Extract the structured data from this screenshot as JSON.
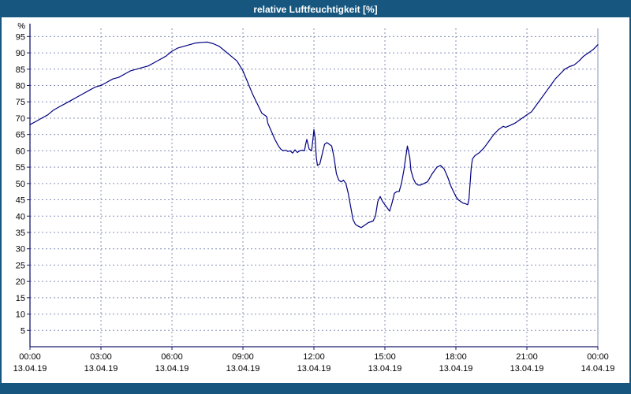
{
  "title_bar": {
    "title": "relative Luftfeuchtigkeit [%]"
  },
  "colors": {
    "titlebar_bg": "#16567f",
    "titlebar_fg": "#ffffff",
    "line": "#000080",
    "axis": "#1a1a6e",
    "grid": "#8890b8",
    "tick_text": "#000000",
    "plot_bg": "#ffffff"
  },
  "chart_data": {
    "type": "line",
    "title": "relative Luftfeuchtigkeit [%]",
    "xlabel": "",
    "ylabel": "%",
    "ylim": [
      0,
      97.5
    ],
    "yticks": [
      5,
      10,
      15,
      20,
      25,
      30,
      35,
      40,
      45,
      50,
      55,
      60,
      65,
      70,
      75,
      80,
      85,
      90,
      95
    ],
    "xlim_hours": [
      0,
      24
    ],
    "grid": true,
    "legend_position": "none",
    "xticks": [
      {
        "hour": 0,
        "time": "00:00",
        "date": "13.04.19"
      },
      {
        "hour": 3,
        "time": "03:00",
        "date": "13.04.19"
      },
      {
        "hour": 6,
        "time": "06:00",
        "date": "13.04.19"
      },
      {
        "hour": 9,
        "time": "09:00",
        "date": "13.04.19"
      },
      {
        "hour": 12,
        "time": "12:00",
        "date": "13.04.19"
      },
      {
        "hour": 15,
        "time": "15:00",
        "date": "13.04.19"
      },
      {
        "hour": 18,
        "time": "18:00",
        "date": "13.04.19"
      },
      {
        "hour": 21,
        "time": "21:00",
        "date": "13.04.19"
      },
      {
        "hour": 24,
        "time": "00:00",
        "date": "14.04.19"
      }
    ],
    "series": [
      {
        "name": "relative Luftfeuchtigkeit [%]",
        "points": [
          [
            0,
            68
          ],
          [
            0.25,
            69
          ],
          [
            0.5,
            70
          ],
          [
            0.75,
            71
          ],
          [
            1,
            72.5
          ],
          [
            1.25,
            73.5
          ],
          [
            1.5,
            74.5
          ],
          [
            1.75,
            75.5
          ],
          [
            2,
            76.5
          ],
          [
            2.25,
            77.5
          ],
          [
            2.5,
            78.5
          ],
          [
            2.75,
            79.5
          ],
          [
            3,
            80
          ],
          [
            3.25,
            81
          ],
          [
            3.5,
            82
          ],
          [
            3.75,
            82.5
          ],
          [
            4,
            83.5
          ],
          [
            4.25,
            84.5
          ],
          [
            4.5,
            85
          ],
          [
            4.75,
            85.5
          ],
          [
            5,
            86
          ],
          [
            5.25,
            87
          ],
          [
            5.5,
            88
          ],
          [
            5.75,
            89
          ],
          [
            6,
            90.5
          ],
          [
            6.25,
            91.5
          ],
          [
            6.5,
            92
          ],
          [
            6.75,
            92.5
          ],
          [
            7,
            93
          ],
          [
            7.25,
            93.2
          ],
          [
            7.5,
            93.3
          ],
          [
            7.75,
            92.8
          ],
          [
            8,
            92
          ],
          [
            8.25,
            90.5
          ],
          [
            8.5,
            89
          ],
          [
            8.75,
            87.5
          ],
          [
            9,
            84.5
          ],
          [
            9.2,
            81
          ],
          [
            9.4,
            77.5
          ],
          [
            9.6,
            74.5
          ],
          [
            9.7,
            73
          ],
          [
            9.8,
            71.5
          ],
          [
            9.9,
            71
          ],
          [
            10,
            70.5
          ],
          [
            10.05,
            68.5
          ],
          [
            10.2,
            66
          ],
          [
            10.35,
            63.5
          ],
          [
            10.5,
            61.5
          ],
          [
            10.6,
            60.5
          ],
          [
            10.7,
            60
          ],
          [
            10.8,
            60.2
          ],
          [
            10.9,
            59.8
          ],
          [
            11,
            60
          ],
          [
            11.1,
            59.3
          ],
          [
            11.2,
            60.3
          ],
          [
            11.3,
            59.5
          ],
          [
            11.4,
            60
          ],
          [
            11.5,
            60.2
          ],
          [
            11.6,
            60
          ],
          [
            11.65,
            62
          ],
          [
            11.7,
            63.5
          ],
          [
            11.75,
            62
          ],
          [
            11.8,
            60.5
          ],
          [
            11.9,
            60
          ],
          [
            11.95,
            63
          ],
          [
            12,
            66.5
          ],
          [
            12.05,
            64
          ],
          [
            12.1,
            58
          ],
          [
            12.15,
            55.5
          ],
          [
            12.25,
            56
          ],
          [
            12.35,
            59
          ],
          [
            12.45,
            62
          ],
          [
            12.55,
            62.5
          ],
          [
            12.65,
            62
          ],
          [
            12.75,
            61.5
          ],
          [
            12.85,
            58
          ],
          [
            12.95,
            53
          ],
          [
            13.05,
            51
          ],
          [
            13.15,
            50.5
          ],
          [
            13.25,
            51
          ],
          [
            13.35,
            50
          ],
          [
            13.45,
            47
          ],
          [
            13.55,
            43
          ],
          [
            13.65,
            39
          ],
          [
            13.75,
            37.5
          ],
          [
            13.85,
            37
          ],
          [
            14,
            36.5
          ],
          [
            14.1,
            37
          ],
          [
            14.3,
            38
          ],
          [
            14.5,
            38.5
          ],
          [
            14.6,
            40
          ],
          [
            14.7,
            44.5
          ],
          [
            14.8,
            46
          ],
          [
            14.9,
            44.5
          ],
          [
            15,
            43.5
          ],
          [
            15.1,
            42.5
          ],
          [
            15.2,
            41.5
          ],
          [
            15.3,
            44
          ],
          [
            15.4,
            47
          ],
          [
            15.5,
            47.5
          ],
          [
            15.6,
            47.5
          ],
          [
            15.7,
            50
          ],
          [
            15.8,
            54
          ],
          [
            15.9,
            59
          ],
          [
            15.95,
            61.5
          ],
          [
            16.05,
            58
          ],
          [
            16.1,
            54
          ],
          [
            16.2,
            51.5
          ],
          [
            16.3,
            50
          ],
          [
            16.4,
            49.5
          ],
          [
            16.5,
            49.5
          ],
          [
            16.6,
            49.8
          ],
          [
            16.8,
            50.5
          ],
          [
            17,
            53
          ],
          [
            17.2,
            55
          ],
          [
            17.35,
            55.5
          ],
          [
            17.5,
            54.5
          ],
          [
            17.65,
            52
          ],
          [
            17.8,
            49
          ],
          [
            17.9,
            47.5
          ],
          [
            18,
            46
          ],
          [
            18.1,
            45
          ],
          [
            18.2,
            44.5
          ],
          [
            18.3,
            44
          ],
          [
            18.4,
            43.8
          ],
          [
            18.5,
            43.5
          ],
          [
            18.55,
            45
          ],
          [
            18.6,
            50
          ],
          [
            18.65,
            55
          ],
          [
            18.7,
            57.5
          ],
          [
            18.8,
            58.5
          ],
          [
            19,
            59.5
          ],
          [
            19.2,
            61
          ],
          [
            19.4,
            63
          ],
          [
            19.6,
            65
          ],
          [
            19.8,
            66.5
          ],
          [
            20,
            67.5
          ],
          [
            20.1,
            67.2
          ],
          [
            20.3,
            67.8
          ],
          [
            20.5,
            68.5
          ],
          [
            20.7,
            69.5
          ],
          [
            21,
            71
          ],
          [
            21.2,
            72
          ],
          [
            21.4,
            74
          ],
          [
            21.6,
            76
          ],
          [
            21.8,
            78
          ],
          [
            22,
            80
          ],
          [
            22.2,
            82
          ],
          [
            22.4,
            83.5
          ],
          [
            22.6,
            85
          ],
          [
            22.8,
            85.8
          ],
          [
            23,
            86.3
          ],
          [
            23.2,
            87.5
          ],
          [
            23.4,
            89
          ],
          [
            23.6,
            90
          ],
          [
            23.8,
            91
          ],
          [
            24,
            92.5
          ]
        ]
      }
    ]
  }
}
